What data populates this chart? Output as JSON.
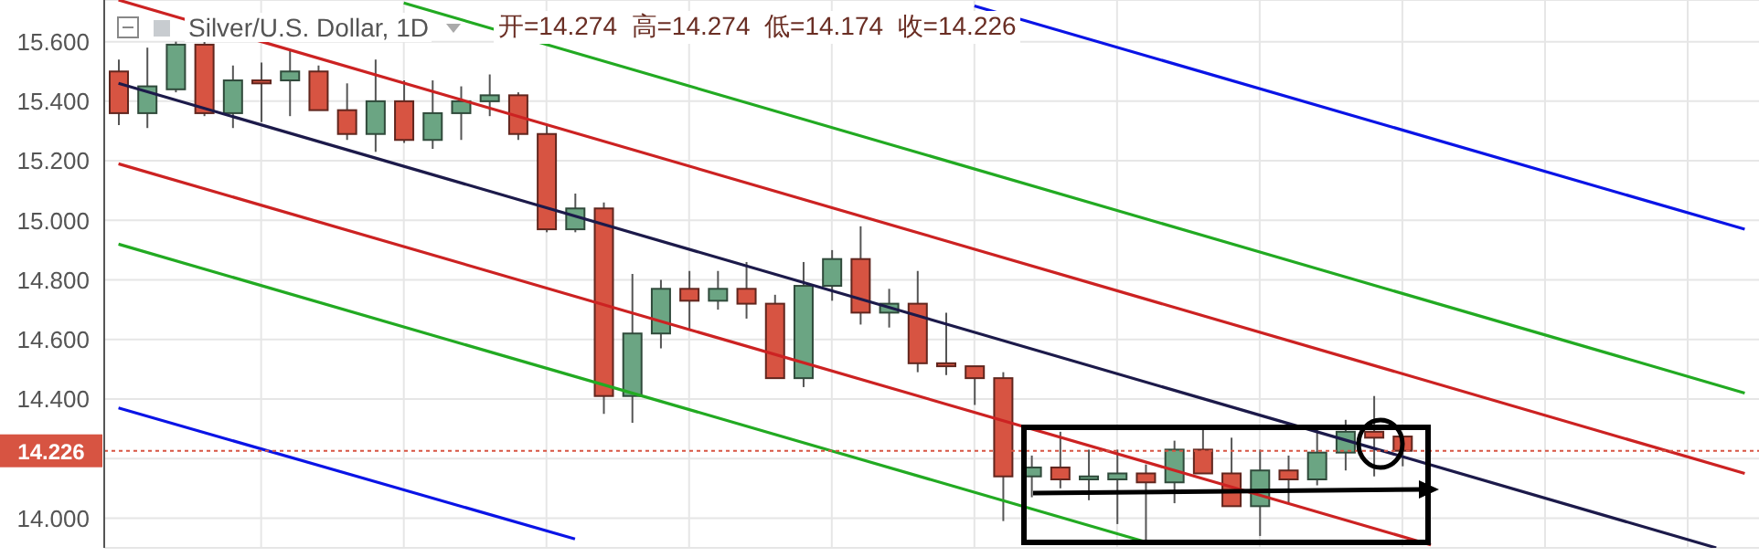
{
  "chart_data": {
    "type": "candlestick",
    "title": "Silver/U.S. Dollar, 1D",
    "subtitle": "开=14.274  高=14.274  低=14.174  收=14.226",
    "categories": [
      null,
      null,
      null,
      null,
      null,
      null,
      null,
      null,
      null,
      null,
      null,
      null,
      null,
      null,
      null,
      null,
      null,
      null,
      null,
      null,
      null,
      null,
      null,
      null,
      null,
      null,
      null,
      null,
      null,
      null,
      null,
      null,
      null,
      null,
      null,
      null,
      null,
      null,
      null,
      null,
      null,
      null,
      null,
      null,
      null,
      null,
      null,
      null,
      null,
      null,
      null,
      null,
      null,
      null,
      null,
      null,
      null,
      null
    ],
    "ohlc": [
      [
        15.5,
        15.54,
        15.32,
        15.36
      ],
      [
        15.36,
        15.58,
        15.31,
        15.45
      ],
      [
        15.44,
        15.6,
        15.43,
        15.59
      ],
      [
        15.59,
        15.6,
        15.35,
        15.36
      ],
      [
        15.36,
        15.52,
        15.31,
        15.47
      ],
      [
        15.47,
        15.53,
        15.33,
        15.46
      ],
      [
        15.47,
        15.57,
        15.35,
        15.5
      ],
      [
        15.5,
        15.52,
        15.37,
        15.37
      ],
      [
        15.37,
        15.46,
        15.27,
        15.29
      ],
      [
        15.29,
        15.54,
        15.23,
        15.4
      ],
      [
        15.4,
        15.47,
        15.26,
        15.27
      ],
      [
        15.27,
        15.47,
        15.24,
        15.36
      ],
      [
        15.36,
        15.45,
        15.27,
        15.4
      ],
      [
        15.4,
        15.49,
        15.35,
        15.42
      ],
      [
        15.42,
        15.43,
        15.27,
        15.29
      ],
      [
        15.29,
        15.32,
        14.96,
        14.97
      ],
      [
        14.97,
        15.09,
        14.96,
        15.04
      ],
      [
        15.04,
        15.06,
        14.35,
        14.41
      ],
      [
        14.41,
        14.82,
        14.32,
        14.62
      ],
      [
        14.62,
        14.8,
        14.57,
        14.77
      ],
      [
        14.77,
        14.83,
        14.63,
        14.73
      ],
      [
        14.73,
        14.83,
        14.7,
        14.77
      ],
      [
        14.77,
        14.86,
        14.67,
        14.72
      ],
      [
        14.72,
        14.75,
        14.47,
        14.47
      ],
      [
        14.47,
        14.86,
        14.44,
        14.78
      ],
      [
        14.78,
        14.9,
        14.73,
        14.87
      ],
      [
        14.87,
        14.98,
        14.65,
        14.69
      ],
      [
        14.69,
        14.77,
        14.64,
        14.72
      ],
      [
        14.72,
        14.83,
        14.49,
        14.52
      ],
      [
        14.52,
        14.69,
        14.48,
        14.51
      ],
      [
        14.51,
        14.51,
        14.38,
        14.47
      ],
      [
        14.47,
        14.49,
        13.99,
        14.14
      ],
      [
        14.14,
        14.21,
        14.07,
        14.17
      ],
      [
        14.17,
        14.29,
        14.1,
        14.13
      ],
      [
        14.13,
        14.23,
        14.06,
        14.14
      ],
      [
        14.13,
        14.23,
        13.98,
        14.15
      ],
      [
        14.15,
        14.18,
        13.92,
        14.12
      ],
      [
        14.12,
        14.26,
        14.05,
        14.23
      ],
      [
        14.23,
        14.31,
        14.15,
        14.15
      ],
      [
        14.15,
        14.27,
        14.04,
        14.04
      ],
      [
        14.04,
        14.23,
        13.94,
        14.16
      ],
      [
        14.16,
        14.21,
        14.05,
        14.13
      ],
      [
        14.13,
        14.31,
        14.11,
        14.22
      ],
      [
        14.22,
        14.33,
        14.16,
        14.29
      ],
      [
        14.29,
        14.41,
        14.14,
        14.27
      ],
      [
        14.274,
        14.274,
        14.174,
        14.226
      ],
      null,
      null,
      null,
      null,
      null,
      null,
      null,
      null,
      null,
      null,
      null,
      null
    ],
    "colors": [
      "#d75442",
      "#6ba583",
      "#6ba583",
      "#d75442",
      "#6ba583",
      "#d75442",
      "#6ba583",
      "#d75442",
      "#d75442",
      "#6ba583",
      "#d75442",
      "#6ba583",
      "#6ba583",
      "#6ba583",
      "#d75442",
      "#d75442",
      "#6ba583",
      "#d75442",
      "#6ba583",
      "#6ba583",
      "#d75442",
      "#6ba583",
      "#d75442",
      "#d75442",
      "#6ba583",
      "#6ba583",
      "#d75442",
      "#6ba583",
      "#d75442",
      "#d75442",
      "#d75442",
      "#d75442",
      "#6ba583",
      "#d75442",
      "#6ba583",
      "#6ba583",
      "#d75442",
      "#6ba583",
      "#d75442",
      "#d75442",
      "#6ba583",
      "#d75442",
      "#6ba583",
      "#6ba583",
      "#d75442",
      "#d75442",
      null,
      null,
      null,
      null,
      null,
      null,
      null,
      null,
      null,
      null,
      null,
      null
    ],
    "series": [
      {
        "type": "line",
        "color": "#1c1a4a",
        "values": [
          15.46,
          null,
          null,
          null,
          null,
          null,
          null,
          null,
          null,
          null,
          null,
          null,
          null,
          null,
          null,
          null,
          null,
          null,
          null,
          null,
          null,
          null,
          null,
          null,
          null,
          null,
          null,
          null,
          null,
          null,
          null,
          null,
          null,
          null,
          null,
          null,
          null,
          null,
          null,
          null,
          null,
          null,
          null,
          null,
          null,
          null,
          null,
          null,
          null,
          null,
          null,
          null,
          null,
          null,
          null,
          null,
          13.9,
          null
        ]
      },
      {
        "type": "line",
        "color": "#cc2222",
        "values": [
          15.74,
          null,
          null,
          null,
          null,
          null,
          null,
          null,
          null,
          null,
          null,
          null,
          null,
          null,
          null,
          null,
          null,
          null,
          null,
          null,
          null,
          null,
          null,
          null,
          null,
          null,
          null,
          null,
          null,
          null,
          null,
          null,
          null,
          null,
          null,
          null,
          null,
          null,
          null,
          null,
          null,
          null,
          null,
          null,
          null,
          null,
          null,
          null,
          null,
          null,
          null,
          null,
          null,
          null,
          null,
          null,
          null,
          14.15
        ]
      },
      {
        "type": "line",
        "color": "#cc2222",
        "values": [
          15.19,
          null,
          null,
          null,
          null,
          null,
          null,
          null,
          null,
          null,
          null,
          null,
          null,
          null,
          null,
          null,
          null,
          null,
          null,
          null,
          null,
          null,
          null,
          null,
          null,
          null,
          null,
          null,
          null,
          null,
          null,
          null,
          null,
          null,
          null,
          null,
          null,
          null,
          null,
          null,
          null,
          null,
          null,
          null,
          null,
          null,
          13.91,
          null,
          null,
          null,
          null,
          null,
          null,
          null,
          null,
          null,
          null,
          null
        ]
      },
      {
        "type": "line",
        "color": "#22aa22",
        "values": [
          null,
          null,
          null,
          null,
          null,
          null,
          null,
          null,
          null,
          null,
          15.73,
          null,
          null,
          null,
          null,
          null,
          null,
          null,
          null,
          null,
          null,
          null,
          null,
          null,
          null,
          null,
          null,
          null,
          null,
          null,
          null,
          null,
          null,
          null,
          null,
          null,
          null,
          null,
          null,
          null,
          null,
          null,
          null,
          null,
          null,
          null,
          null,
          null,
          null,
          null,
          null,
          null,
          null,
          null,
          null,
          null,
          null,
          14.42
        ]
      },
      {
        "type": "line",
        "color": "#22aa22",
        "values": [
          14.92,
          null,
          null,
          null,
          null,
          null,
          null,
          null,
          null,
          null,
          null,
          null,
          null,
          null,
          null,
          null,
          null,
          null,
          null,
          null,
          null,
          null,
          null,
          null,
          null,
          null,
          null,
          null,
          null,
          null,
          null,
          null,
          null,
          null,
          null,
          null,
          13.92,
          null,
          null,
          null,
          null,
          null,
          null,
          null,
          null,
          null,
          null,
          null,
          null,
          null,
          null,
          null,
          null,
          null,
          null,
          null,
          null,
          null
        ]
      },
      {
        "type": "line",
        "color": "#0a14e6",
        "values": [
          null,
          null,
          null,
          null,
          null,
          null,
          null,
          null,
          null,
          null,
          null,
          null,
          null,
          null,
          null,
          null,
          null,
          null,
          null,
          null,
          null,
          null,
          null,
          null,
          null,
          null,
          null,
          null,
          null,
          null,
          15.72,
          null,
          null,
          null,
          null,
          null,
          null,
          null,
          null,
          null,
          null,
          null,
          null,
          null,
          null,
          null,
          null,
          null,
          null,
          null,
          null,
          null,
          null,
          null,
          null,
          null,
          null,
          14.97
        ]
      },
      {
        "type": "line",
        "color": "#0a14e6",
        "values": [
          14.37,
          null,
          null,
          null,
          null,
          null,
          null,
          null,
          null,
          null,
          null,
          null,
          null,
          null,
          null,
          null,
          13.93,
          null,
          null,
          null,
          null,
          null,
          null,
          null,
          null,
          null,
          null,
          null,
          null,
          null,
          null,
          null,
          null,
          null,
          null,
          null,
          null,
          null,
          null,
          null,
          null,
          null,
          null,
          null,
          null,
          null,
          null,
          null,
          null,
          null,
          null,
          null,
          null,
          null,
          null,
          null,
          null,
          null
        ]
      }
    ],
    "ylim": [
      13.9,
      15.74
    ],
    "yticks": [
      {
        "value": 14,
        "label": "14.000"
      },
      {
        "value": 14.2,
        "label": null
      },
      {
        "value": 14.4,
        "label": "14.400"
      },
      {
        "value": 14.6,
        "label": "14.600"
      },
      {
        "value": 14.8,
        "label": "14.800"
      },
      {
        "value": 15,
        "label": "15.000"
      },
      {
        "value": 15.2,
        "label": "15.200"
      },
      {
        "value": 15.4,
        "label": "15.400"
      },
      {
        "value": 15.6,
        "label": "15.600"
      }
    ],
    "ref_lines": [
      {
        "axis": "y",
        "value": 14.226,
        "label": "14.226",
        "color": "#d75442",
        "line_style": "dotted"
      }
    ],
    "grid": true,
    "tick_labels": "y"
  }
}
